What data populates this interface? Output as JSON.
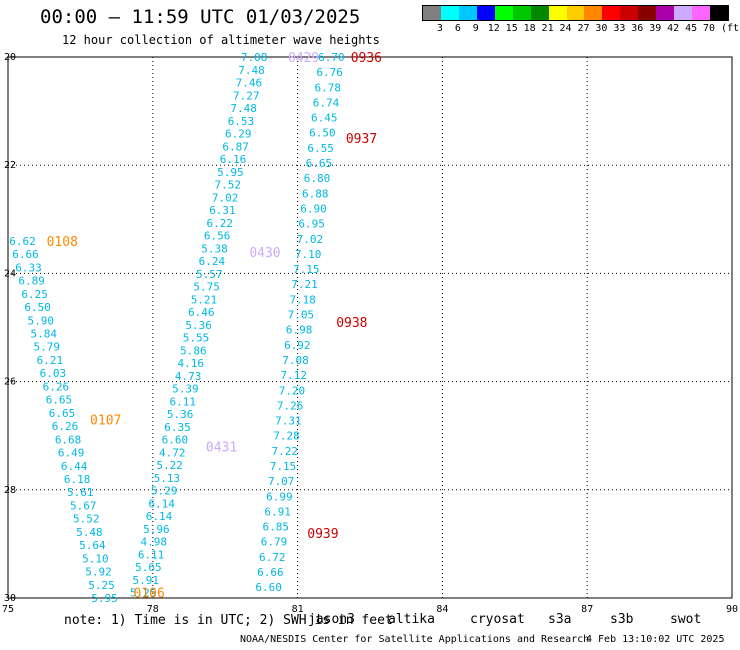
{
  "title": "00:00 — 11:59 UTC 01/03/2025",
  "subtitle": "12 hour collection of altimeter wave heights",
  "legend": {
    "unit": "(ft)",
    "colors": [
      "#808080",
      "#00ffff",
      "#00c8ff",
      "#0000ff",
      "#00ff00",
      "#00c800",
      "#008800",
      "#ffff00",
      "#ffcc00",
      "#ff8800",
      "#ff0000",
      "#cc0000",
      "#880000",
      "#aa00aa",
      "#ccaaff",
      "#ff66ff",
      "#000000"
    ],
    "labels": [
      "3",
      "6",
      "9",
      "12",
      "15",
      "18",
      "21",
      "24",
      "27",
      "30",
      "33",
      "36",
      "39",
      "42",
      "45",
      "70"
    ]
  },
  "note": "note: 1) Time is in UTC; 2) SWH is in feet",
  "satellites": [
    {
      "name": "jason3",
      "color": "#008800"
    },
    {
      "name": "altika",
      "color": "#ff8800"
    },
    {
      "name": "cryosat",
      "color": "#ff0000"
    },
    {
      "name": "s3a",
      "color": "#cc0000"
    },
    {
      "name": "s3b",
      "color": "#ccaaff"
    },
    {
      "name": "swot",
      "color": "#ff66ff"
    }
  ],
  "credit": "NOAA/NESDIS Center for Satellite Applications and Research",
  "generated": "4 Feb 13:10:02 UTC 2025",
  "chart_data": {
    "type": "scatter",
    "title": "00:00 — 11:59 UTC 01/03/2025",
    "x_ticks": [
      75,
      78,
      81,
      84,
      87,
      90
    ],
    "x_tick_labels": [
      "75",
      "78",
      "81",
      "84",
      "87",
      "90"
    ],
    "y_ticks": [
      -20,
      -22,
      -24,
      -26,
      -28,
      -30
    ],
    "y_tick_labels": [
      "20",
      "22",
      "24",
      "26",
      "28",
      "30"
    ],
    "xlim": [
      75,
      90
    ],
    "ylim": [
      -30,
      -20
    ],
    "grid": true,
    "time_labels": [
      {
        "label": "0936",
        "lon": 82.1,
        "lat": -20.0,
        "color": "#cc0000"
      },
      {
        "label": "0937",
        "lon": 82.0,
        "lat": -21.5,
        "color": "#cc0000"
      },
      {
        "label": "0938",
        "lon": 81.8,
        "lat": -24.9,
        "color": "#cc0000"
      },
      {
        "label": "0939",
        "lon": 81.2,
        "lat": -28.8,
        "color": "#cc0000"
      },
      {
        "label": "0429",
        "lon": 80.8,
        "lat": -20.0,
        "color": "#ccaaff"
      },
      {
        "label": "0430",
        "lon": 80.0,
        "lat": -23.6,
        "color": "#ccaaff"
      },
      {
        "label": "0431",
        "lon": 79.1,
        "lat": -27.2,
        "color": "#ccaaff"
      },
      {
        "label": "0108",
        "lon": 75.8,
        "lat": -23.4,
        "color": "#ff8800"
      },
      {
        "label": "0107",
        "lon": 76.7,
        "lat": -26.7,
        "color": "#ff8800"
      },
      {
        "label": "0106",
        "lon": 77.6,
        "lat": -29.9,
        "color": "#ff8800"
      }
    ],
    "series": [
      {
        "name": "pass 0108",
        "color": "#00b8e6",
        "lon_top": 75.3,
        "lat_top": -23.4,
        "lon_bot": 77.0,
        "lat_bot": -30.0,
        "values": [
          "6.62",
          "6.66",
          "6.33",
          "6.89",
          "6.25",
          "6.50",
          "5.90",
          "5.84",
          "5.79",
          "6.21",
          "6.03",
          "6.26",
          "6.65",
          "6.65",
          "6.26",
          "6.68",
          "6.49",
          "6.44",
          "6.18",
          "5.61",
          "5.67",
          "5.52",
          "5.48",
          "5.64",
          "5.10",
          "5.92",
          "5.25",
          "5.95"
        ]
      },
      {
        "name": "pass 0430",
        "color": "#00b8e6",
        "lon_top": 80.1,
        "lat_top": -20.0,
        "lon_bot": 77.8,
        "lat_bot": -29.9,
        "values": [
          "7.08",
          "7.48",
          "7.46",
          "7.27",
          "7.48",
          "6.53",
          "6.29",
          "6.87",
          "6.16",
          "5.95",
          "7.52",
          "7.02",
          "6.31",
          "6.22",
          "6.56",
          "5.38",
          "6.24",
          "5.57",
          "5.75",
          "5.21",
          "6.46",
          "5.36",
          "5.55",
          "5.86",
          "4.16",
          "4.73",
          "5.39",
          "6.11",
          "5.36",
          "6.35",
          "6.60",
          "4.72",
          "5.22",
          "5.13",
          "5.29",
          "6.14",
          "6.14",
          "5.96",
          "4.98",
          "6.11",
          "5.65",
          "5.91",
          "5.25"
        ]
      },
      {
        "name": "pass 0937",
        "color": "#00b8e6",
        "lon_top": 81.7,
        "lat_top": -20.0,
        "lon_bot": 80.4,
        "lat_bot": -29.8,
        "values": [
          "6.70",
          "6.76",
          "6.78",
          "6.74",
          "6.45",
          "6.50",
          "6.55",
          "6.65",
          "6.80",
          "6.88",
          "6.90",
          "6.95",
          "7.02",
          "7.10",
          "7.15",
          "7.21",
          "7.18",
          "7.05",
          "6.98",
          "6.92",
          "7.08",
          "7.12",
          "7.20",
          "7.26",
          "7.31",
          "7.28",
          "7.22",
          "7.15",
          "7.07",
          "6.99",
          "6.91",
          "6.85",
          "6.79",
          "6.72",
          "6.66",
          "6.60"
        ]
      }
    ]
  }
}
